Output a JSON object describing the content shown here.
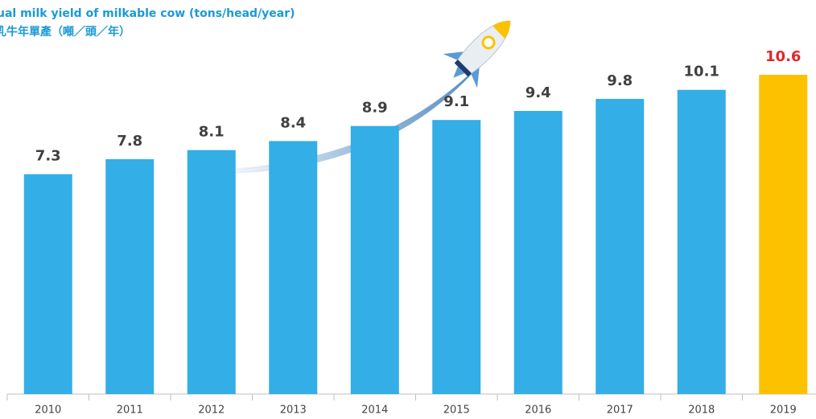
{
  "chart_data": {
    "type": "bar",
    "title": "ual milk yield of milkable cow (tons/head/year)",
    "subtitle": "乳牛年單產（噸／頭／年）",
    "categories": [
      "2010",
      "2011",
      "2012",
      "2013",
      "2014",
      "2015",
      "2016",
      "2017",
      "2018",
      "2019"
    ],
    "values": [
      7.3,
      7.8,
      8.1,
      8.4,
      8.9,
      9.1,
      9.4,
      9.8,
      10.1,
      10.6
    ],
    "colors": [
      "#33aee6",
      "#33aee6",
      "#33aee6",
      "#33aee6",
      "#33aee6",
      "#33aee6",
      "#33aee6",
      "#33aee6",
      "#33aee6",
      "#fcc200"
    ],
    "label_colors": [
      "#404040",
      "#404040",
      "#404040",
      "#404040",
      "#404040",
      "#404040",
      "#404040",
      "#404040",
      "#404040",
      "#e3262b"
    ],
    "ylim": [
      0,
      10.6
    ]
  }
}
